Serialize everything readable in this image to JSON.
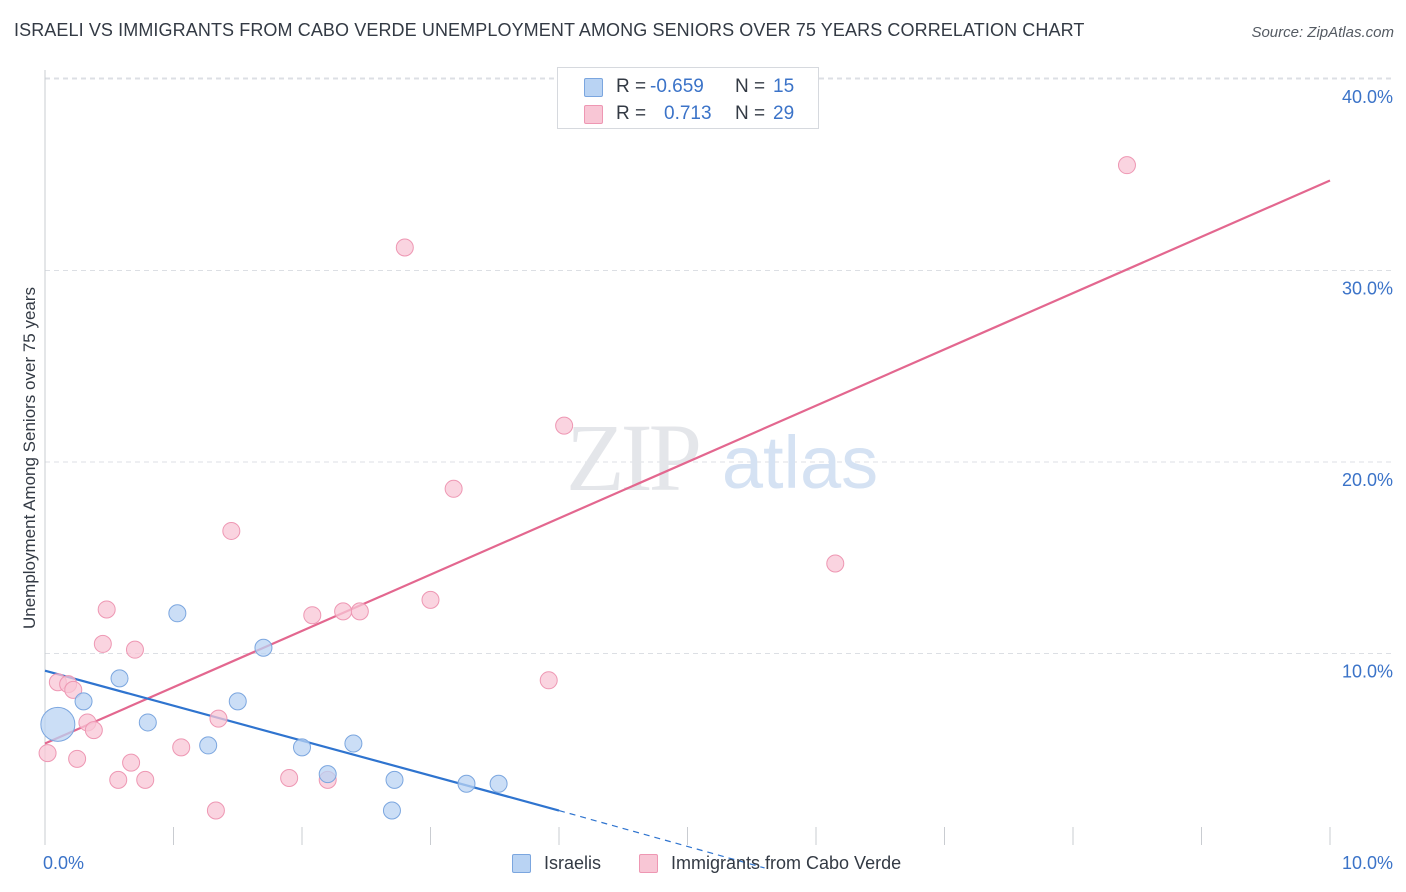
{
  "title": "ISRAELI VS IMMIGRANTS FROM CABO VERDE UNEMPLOYMENT AMONG SENIORS OVER 75 YEARS CORRELATION CHART",
  "source": "Source: ZipAtlas.com",
  "watermark": {
    "zip": "ZIP",
    "atlas": "atlas"
  },
  "legend": {
    "r_label": "R =",
    "n_label": "N =",
    "rows": [
      {
        "r": "-0.659",
        "n": "15"
      },
      {
        "r": "0.713",
        "n": "29"
      }
    ]
  },
  "bottom_legend": [
    "Israelis",
    "Immigrants from Cabo Verde"
  ],
  "colors": {
    "blue_fill": "#b9d3f3",
    "blue_stroke": "#7ba6df",
    "blue_line": "#2f74cf",
    "pink_fill": "#f8c6d5",
    "pink_stroke": "#ee97b3",
    "pink_line": "#e3678f",
    "grid": "#dcdfe4",
    "tick_label": "#3b73c8"
  },
  "chart_data": {
    "type": "scatter",
    "title": "ISRAELI VS IMMIGRANTS FROM CABO VERDE UNEMPLOYMENT AMONG SENIORS OVER 75 YEARS CORRELATION CHART",
    "xlabel": "",
    "ylabel": "Unemployment Among Seniors over 75 years",
    "xlim": [
      0,
      10
    ],
    "ylim": [
      0,
      41
    ],
    "x_tick_labels": [
      "0.0%",
      "10.0%"
    ],
    "y_ticks": [
      10,
      20,
      30,
      40
    ],
    "y_tick_labels": [
      "10.0%",
      "20.0%",
      "30.0%",
      "40.0%"
    ],
    "grid": true,
    "series": [
      {
        "name": "Israelis",
        "r": -0.659,
        "n": 15,
        "points": [
          {
            "x": 0.1,
            "y": 6.3,
            "big": true
          },
          {
            "x": 0.3,
            "y": 7.5
          },
          {
            "x": 0.58,
            "y": 8.7
          },
          {
            "x": 0.8,
            "y": 6.4
          },
          {
            "x": 1.03,
            "y": 12.1
          },
          {
            "x": 1.27,
            "y": 5.2
          },
          {
            "x": 1.5,
            "y": 7.5
          },
          {
            "x": 1.7,
            "y": 10.3
          },
          {
            "x": 2.0,
            "y": 5.1
          },
          {
            "x": 2.2,
            "y": 3.7
          },
          {
            "x": 2.4,
            "y": 5.3
          },
          {
            "x": 2.72,
            "y": 3.4
          },
          {
            "x": 2.7,
            "y": 1.8
          },
          {
            "x": 3.28,
            "y": 3.2
          },
          {
            "x": 3.53,
            "y": 3.2
          }
        ],
        "trend": {
          "x0": 0,
          "y0": 9.1,
          "x1": 4.0,
          "y1": 1.8,
          "dash_to_x": 5.6,
          "dash_to_y": -1.2
        }
      },
      {
        "name": "Immigrants from Cabo Verde",
        "r": 0.713,
        "n": 29,
        "points": [
          {
            "x": 0.02,
            "y": 4.8
          },
          {
            "x": 0.1,
            "y": 8.5
          },
          {
            "x": 0.18,
            "y": 8.4
          },
          {
            "x": 0.22,
            "y": 8.1
          },
          {
            "x": 0.25,
            "y": 4.5
          },
          {
            "x": 0.33,
            "y": 6.4
          },
          {
            "x": 0.38,
            "y": 6.0
          },
          {
            "x": 0.45,
            "y": 10.5
          },
          {
            "x": 0.48,
            "y": 12.3
          },
          {
            "x": 0.57,
            "y": 3.4
          },
          {
            "x": 0.67,
            "y": 4.3
          },
          {
            "x": 0.7,
            "y": 10.2
          },
          {
            "x": 0.78,
            "y": 3.4
          },
          {
            "x": 1.06,
            "y": 5.1
          },
          {
            "x": 1.33,
            "y": 1.8
          },
          {
            "x": 1.35,
            "y": 6.6
          },
          {
            "x": 1.45,
            "y": 16.4
          },
          {
            "x": 1.9,
            "y": 3.5
          },
          {
            "x": 2.08,
            "y": 12.0
          },
          {
            "x": 2.2,
            "y": 3.4
          },
          {
            "x": 2.32,
            "y": 12.2
          },
          {
            "x": 2.45,
            "y": 12.2
          },
          {
            "x": 2.8,
            "y": 31.2
          },
          {
            "x": 3.0,
            "y": 12.8
          },
          {
            "x": 3.18,
            "y": 18.6
          },
          {
            "x": 3.92,
            "y": 8.6
          },
          {
            "x": 4.04,
            "y": 21.9
          },
          {
            "x": 6.15,
            "y": 14.7
          },
          {
            "x": 8.42,
            "y": 35.5
          }
        ],
        "trend": {
          "x0": 0,
          "y0": 5.3,
          "x1": 10.0,
          "y1": 34.7
        }
      }
    ]
  }
}
